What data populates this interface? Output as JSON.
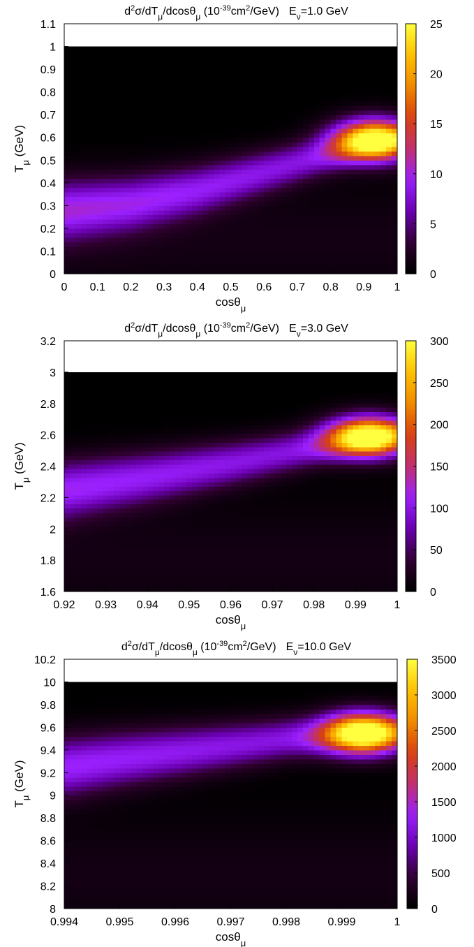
{
  "chart_data": [
    {
      "type": "heatmap",
      "title_parts": {
        "pre": "d",
        "sup1": "2",
        "mid1": "σ/dT",
        "sub1": "μ",
        "mid2": "/dcosθ",
        "sub2": "μ",
        "mid3": " (10",
        "sup2": "-39",
        "mid4": "cm",
        "sup3": "2",
        "mid5": "/GeV)",
        "e": "E",
        "esub": "ν",
        "eval": "=1.0 GeV"
      },
      "xlabel": {
        "base": "cosθ",
        "sub": "μ"
      },
      "ylabel": {
        "base": "T",
        "sub": "μ",
        "unit": " (GeV)"
      },
      "xlim": [
        0,
        1
      ],
      "ylim": [
        0,
        1.1
      ],
      "data_ymax": 1.0,
      "x_ticks": [
        "0",
        "0.1",
        "0.2",
        "0.3",
        "0.4",
        "0.5",
        "0.6",
        "0.7",
        "0.8",
        "0.9",
        "1"
      ],
      "y_ticks": [
        "0",
        "0.1",
        "0.2",
        "0.3",
        "0.4",
        "0.5",
        "0.6",
        "0.7",
        "0.8",
        "0.9",
        "1",
        "1.1"
      ],
      "colorbar_range": [
        0,
        25
      ],
      "colorbar_ticks": [
        "0",
        "5",
        "10",
        "15",
        "20",
        "25"
      ],
      "ridge": {
        "x": [
          0.0,
          0.2,
          0.4,
          0.6,
          0.8,
          0.9,
          1.0
        ],
        "y": [
          0.28,
          0.31,
          0.37,
          0.45,
          0.53,
          0.57,
          0.59
        ]
      },
      "peak": {
        "x": 0.93,
        "y": 0.59,
        "value": 24
      }
    },
    {
      "type": "heatmap",
      "title_parts": {
        "pre": "d",
        "sup1": "2",
        "mid1": "σ/dT",
        "sub1": "μ",
        "mid2": "/dcosθ",
        "sub2": "μ",
        "mid3": " (10",
        "sup2": "-39",
        "mid4": "cm",
        "sup3": "2",
        "mid5": "/GeV)",
        "e": "E",
        "esub": "ν",
        "eval": "=3.0 GeV"
      },
      "xlabel": {
        "base": "cosθ",
        "sub": "μ"
      },
      "ylabel": {
        "base": "T",
        "sub": "μ",
        "unit": " (GeV)"
      },
      "xlim": [
        0.92,
        1
      ],
      "ylim": [
        1.6,
        3.2
      ],
      "data_ymax": 3.0,
      "x_ticks": [
        "0.92",
        "0.93",
        "0.94",
        "0.95",
        "0.96",
        "0.97",
        "0.98",
        "0.99",
        "1"
      ],
      "y_ticks": [
        "1.6",
        "1.8",
        "2",
        "2.2",
        "2.4",
        "2.6",
        "2.8",
        "3",
        "3.2"
      ],
      "colorbar_range": [
        0,
        300
      ],
      "colorbar_ticks": [
        "0",
        "50",
        "100",
        "150",
        "200",
        "250",
        "300"
      ],
      "ridge": {
        "x": [
          0.92,
          0.94,
          0.96,
          0.98,
          0.99,
          1.0
        ],
        "y": [
          2.25,
          2.33,
          2.42,
          2.52,
          2.57,
          2.6
        ]
      },
      "peak": {
        "x": 0.993,
        "y": 2.59,
        "value": 290
      }
    },
    {
      "type": "heatmap",
      "title_parts": {
        "pre": "d",
        "sup1": "2",
        "mid1": "σ/dT",
        "sub1": "μ",
        "mid2": "/dcosθ",
        "sub2": "μ",
        "mid3": " (10",
        "sup2": "-39",
        "mid4": "cm",
        "sup3": "2",
        "mid5": "/GeV)",
        "e": "E",
        "esub": "ν",
        "eval": "=10.0 GeV"
      },
      "xlabel": {
        "base": "cosθ",
        "sub": "μ"
      },
      "ylabel": {
        "base": "T",
        "sub": "μ",
        "unit": " (GeV)"
      },
      "xlim": [
        0.994,
        1
      ],
      "ylim": [
        8,
        10.2
      ],
      "data_ymax": 10.0,
      "x_ticks": [
        "0.994",
        "0.995",
        "0.996",
        "0.997",
        "0.998",
        "0.999",
        "1"
      ],
      "y_ticks": [
        "8",
        "8.2",
        "8.4",
        "8.6",
        "8.8",
        "9",
        "9.2",
        "9.4",
        "9.6",
        "9.8",
        "10",
        "10.2"
      ],
      "colorbar_range": [
        0,
        3500
      ],
      "colorbar_ticks": [
        "0",
        "500",
        "1000",
        "1500",
        "2000",
        "2500",
        "3000",
        "3500"
      ],
      "ridge": {
        "x": [
          0.994,
          0.995,
          0.996,
          0.997,
          0.998,
          0.999,
          1.0
        ],
        "y": [
          9.25,
          9.32,
          9.38,
          9.44,
          9.5,
          9.54,
          9.56
        ]
      },
      "peak": {
        "x": 0.9994,
        "y": 9.55,
        "value": 3300
      }
    }
  ],
  "palette": [
    "#000000",
    "#300030",
    "#6a00b0",
    "#9a20ff",
    "#c03070",
    "#d84010",
    "#f08a00",
    "#ffc000",
    "#ffff40"
  ]
}
